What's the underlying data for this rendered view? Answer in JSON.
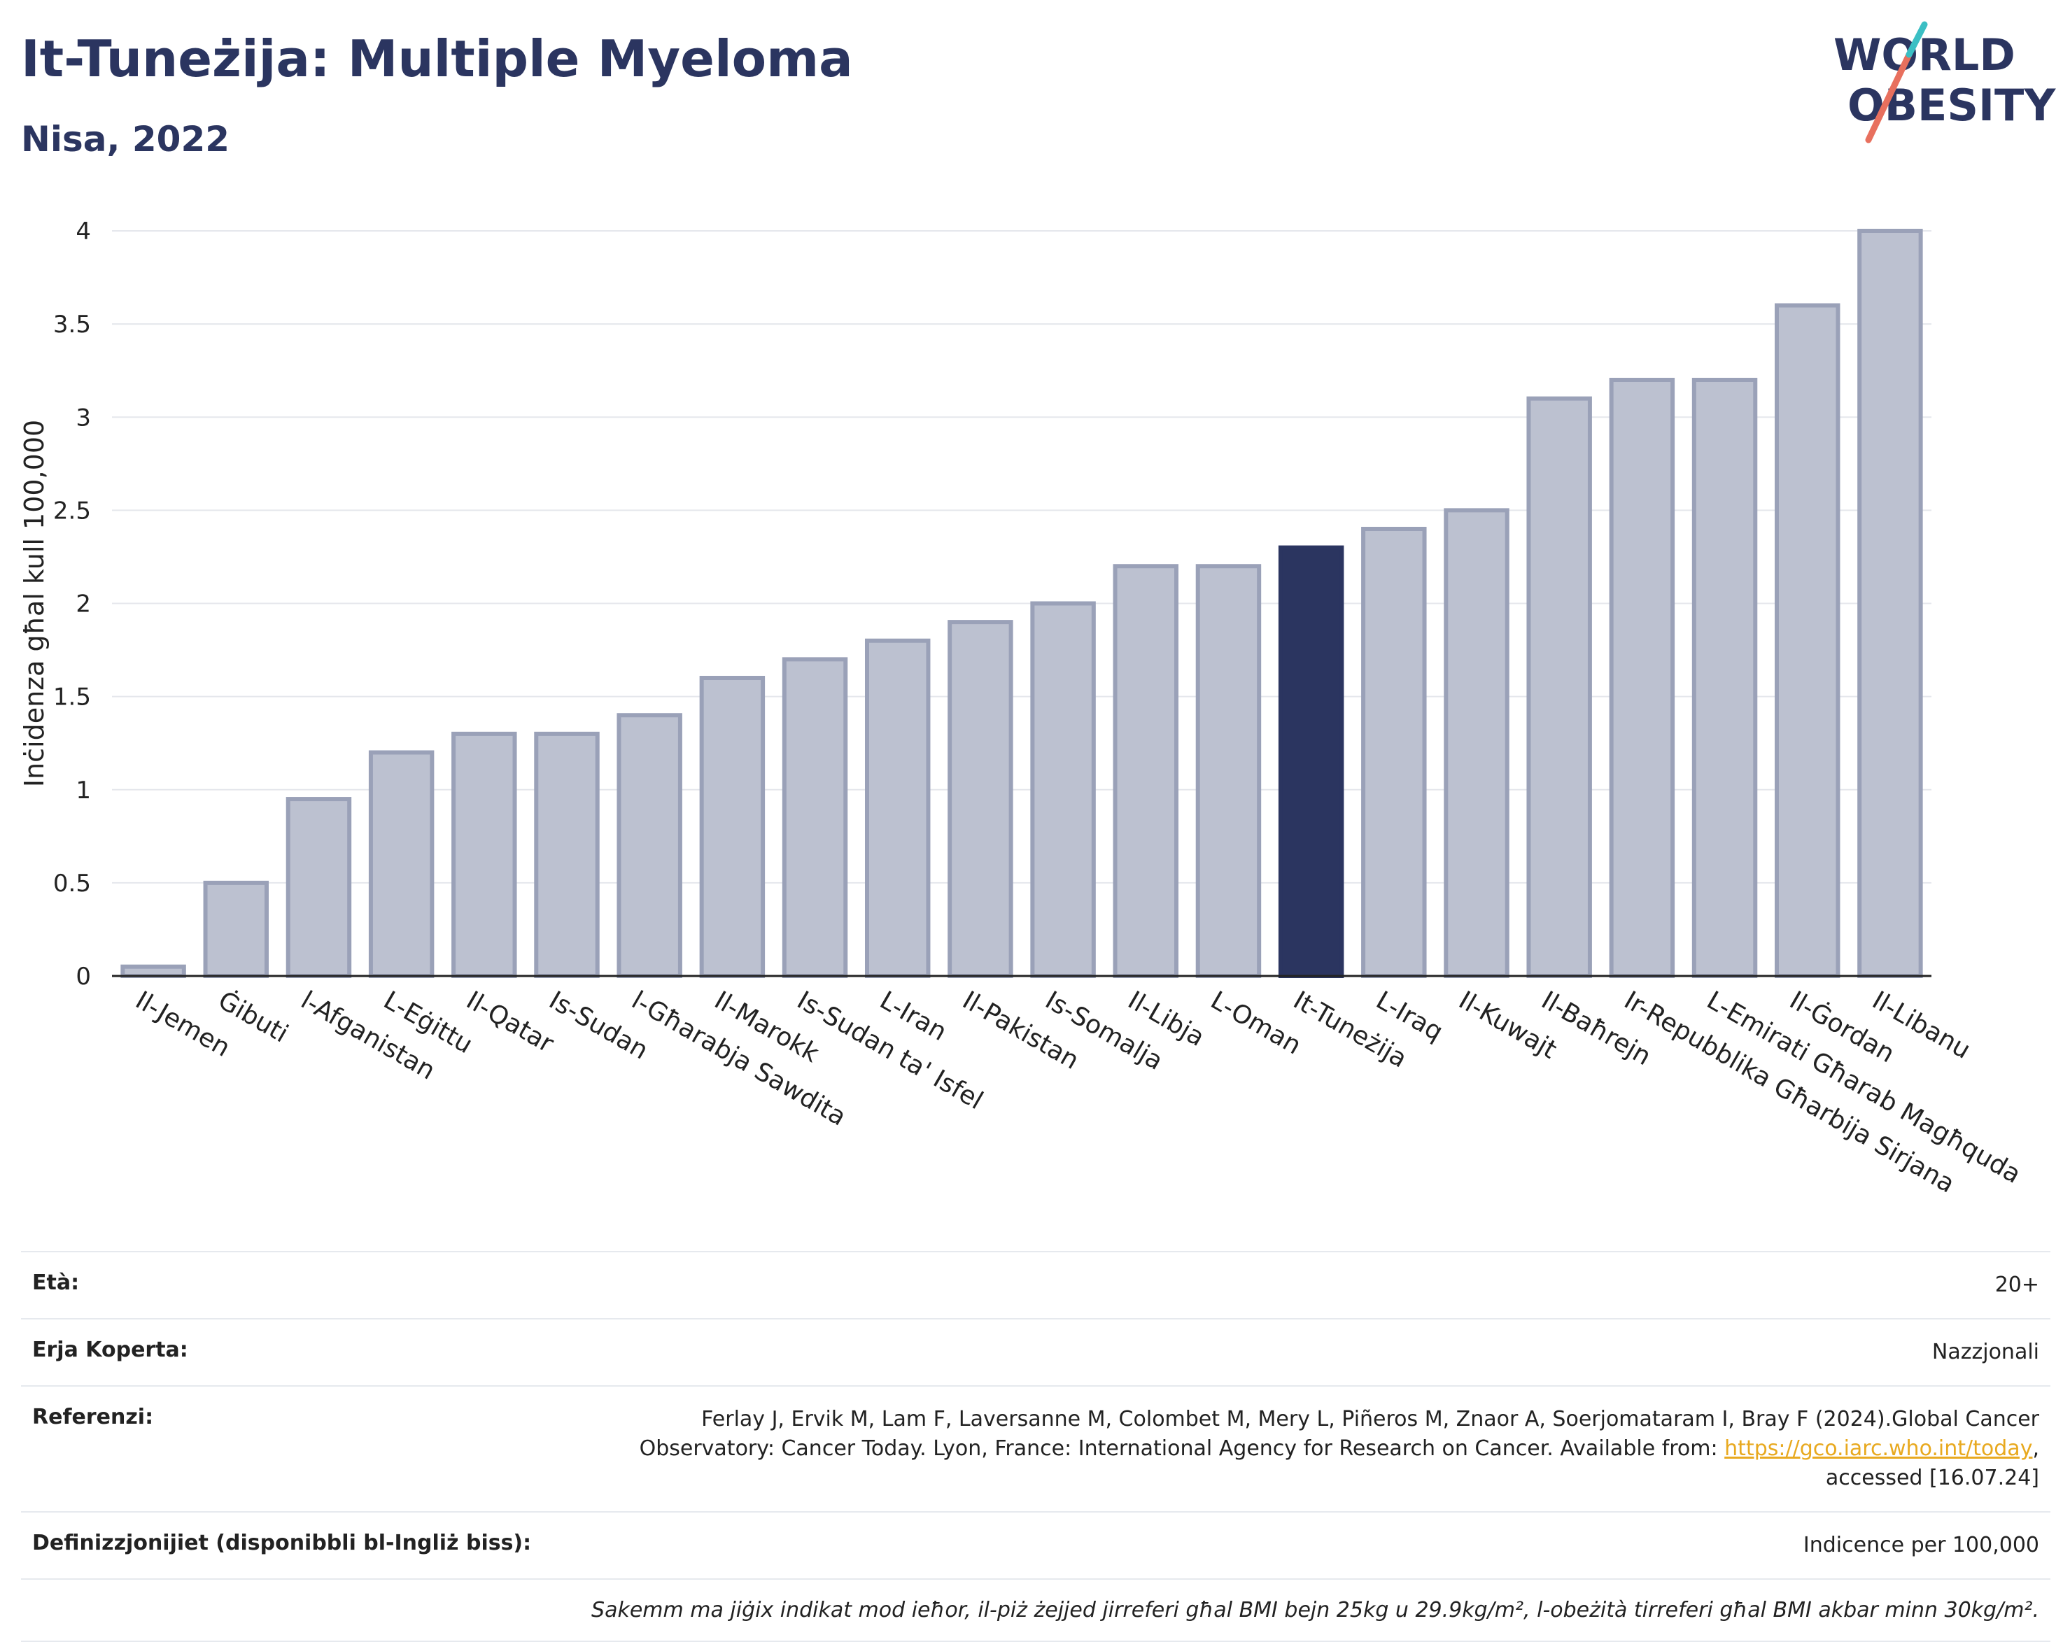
{
  "header": {
    "title": "It-Tuneżija: Multiple Myeloma",
    "subtitle": "Nisa, 2022"
  },
  "logo": {
    "line1": "WORLD",
    "line2": "OBESITY"
  },
  "colors": {
    "bar": "#bcc1d0",
    "bar_border": "#9aa1b8",
    "highlight": "#2b3560",
    "grid": "#e5e7ec"
  },
  "chart_data": {
    "type": "bar",
    "title": "It-Tuneżija: Multiple Myeloma",
    "subtitle": "Nisa, 2022",
    "xlabel": "",
    "ylabel": "Inċidenza għal kull 100,000",
    "ylim": [
      0,
      4
    ],
    "yticks": [
      0,
      0.5,
      1,
      1.5,
      2,
      2.5,
      3,
      3.5,
      4
    ],
    "ytick_labels": [
      "0",
      "0.5",
      "1",
      "1.5",
      "2",
      "2.5",
      "3",
      "3.5",
      "4"
    ],
    "grid": true,
    "highlight": "It-Tuneżija",
    "categories": [
      "Il-Jemen",
      "Ġibuti",
      "l-Afganistan",
      "L-Eġittu",
      "Il-Qatar",
      "Is-Sudan",
      "l-Għarabja Sawdita",
      "Il-Marokk",
      "Is-Sudan ta' Isfel",
      "L-Iran",
      "Il-Pakistan",
      "Is-Somalja",
      "Il-Libja",
      "L-Oman",
      "It-Tuneżija",
      "L-Iraq",
      "Il-Kuwajt",
      "Il-Baħrejn",
      "Ir-Repubblika Għarbija Sirjana",
      "L-Emirati Għarab Magħquda",
      "Il-Ġordan",
      "Il-Libanu"
    ],
    "values": [
      0.05,
      0.5,
      0.95,
      1.2,
      1.3,
      1.3,
      1.4,
      1.6,
      1.7,
      1.8,
      1.9,
      2.0,
      2.2,
      2.2,
      2.3,
      2.4,
      2.5,
      3.1,
      3.2,
      3.2,
      3.6,
      4.0
    ]
  },
  "meta": {
    "age_label": "Età:",
    "age_value": "20+",
    "area_label": "Erja Koperta:",
    "area_value": "Nazzjonali",
    "ref_label": "Referenzi:",
    "ref_line1": "Ferlay J, Ervik M, Lam F, Laversanne M, Colombet M, Mery L, Piñeros M, Znaor A, Soerjomataram I, Bray F (2024).Global Cancer",
    "ref_line2_pre": "Observatory: Cancer Today. Lyon, France: International Agency for Research on Cancer. Available from: ",
    "ref_link": "https://gco.iarc.who.int/today",
    "ref_line2_post": ",",
    "ref_line3": "accessed [16.07.24]",
    "def_label": "Definizzjonijiet (disponibbli bl-Ingliż biss):",
    "def_value": "Indicence per 100,000",
    "note": "Sakemm ma jiġix indikat mod ieħor, il-piż żejjed jirreferi għal BMI bejn 25kg u 29.9kg/m², l-obeżità tirreferi għal BMI akbar minn 30kg/m²."
  }
}
